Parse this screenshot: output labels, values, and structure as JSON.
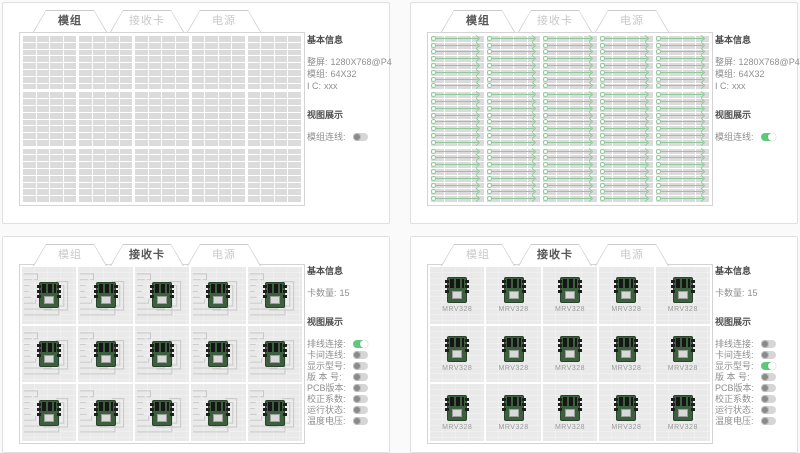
{
  "colors": {
    "toggle_on_green": "#5ec97b",
    "wire_green": "#8ccb99",
    "pcb_green": "#3c5f3d",
    "module_cell_grey": "#dbdbdb"
  },
  "panels": [
    {
      "tabs": [
        {
          "label": "模组",
          "active": true
        },
        {
          "label": "接收卡",
          "active": false
        },
        {
          "label": "电源",
          "active": false
        }
      ],
      "view": "modules",
      "wires_on": false,
      "grid": {
        "block_cols": 5,
        "block_rows": 3,
        "cell_cols": 4,
        "cell_rows": 8
      },
      "info": {
        "basic_title": "基本信息",
        "fields": [
          {
            "label": "整屏:",
            "value": "1280X768@P4"
          },
          {
            "label": "模组:",
            "value": "64X32"
          },
          {
            "label": "I C:",
            "value": "xxx"
          }
        ],
        "view_title": "视图展示",
        "toggles": [
          {
            "label": "模组连线:",
            "on": false
          }
        ]
      }
    },
    {
      "tabs": [
        {
          "label": "模组",
          "active": true
        },
        {
          "label": "接收卡",
          "active": false
        },
        {
          "label": "电源",
          "active": false
        }
      ],
      "view": "modules",
      "wires_on": true,
      "grid": {
        "block_cols": 5,
        "block_rows": 3,
        "cell_cols": 4,
        "cell_rows": 8
      },
      "info": {
        "basic_title": "基本信息",
        "fields": [
          {
            "label": "整屏:",
            "value": "1280X768@P4"
          },
          {
            "label": "模组:",
            "value": "64X32"
          },
          {
            "label": "I C:",
            "value": "xxx"
          }
        ],
        "view_title": "视图展示",
        "toggles": [
          {
            "label": "模组连线:",
            "on": true
          }
        ]
      }
    },
    {
      "tabs": [
        {
          "label": "模组",
          "active": false
        },
        {
          "label": "接收卡",
          "active": true
        },
        {
          "label": "电源",
          "active": false
        }
      ],
      "view": "cards",
      "cables_on": true,
      "labels_on": false,
      "cards": {
        "cols": 5,
        "rows": 3
      },
      "info": {
        "basic_title": "基本信息",
        "fields": [
          {
            "label": "卡数量:",
            "value": "15"
          }
        ],
        "view_title": "视图展示",
        "toggles": [
          {
            "label": "排线连接:",
            "on": true
          },
          {
            "label": "卡间连线:",
            "on": false
          },
          {
            "label": "显示型号:",
            "on": false
          },
          {
            "label": "版 本 号:",
            "on": false
          },
          {
            "label": "PCB版本:",
            "on": false
          },
          {
            "label": "校正系数:",
            "on": false
          },
          {
            "label": "运行状态:",
            "on": false
          },
          {
            "label": "温度电压:",
            "on": false
          }
        ]
      }
    },
    {
      "tabs": [
        {
          "label": "模组",
          "active": false
        },
        {
          "label": "接收卡",
          "active": true
        },
        {
          "label": "电源",
          "active": false
        }
      ],
      "view": "cards",
      "cables_on": false,
      "labels_on": true,
      "cards": {
        "cols": 5,
        "rows": 3,
        "label": "MRV328"
      },
      "info": {
        "basic_title": "基本信息",
        "fields": [
          {
            "label": "卡数量:",
            "value": "15"
          }
        ],
        "view_title": "视图展示",
        "toggles": [
          {
            "label": "排线连接:",
            "on": false
          },
          {
            "label": "卡间连线:",
            "on": false
          },
          {
            "label": "显示型号:",
            "on": true
          },
          {
            "label": "版 本 号:",
            "on": false
          },
          {
            "label": "PCB版本:",
            "on": false
          },
          {
            "label": "校正系数:",
            "on": false
          },
          {
            "label": "运行状态:",
            "on": false
          },
          {
            "label": "温度电压:",
            "on": false
          }
        ]
      }
    }
  ]
}
